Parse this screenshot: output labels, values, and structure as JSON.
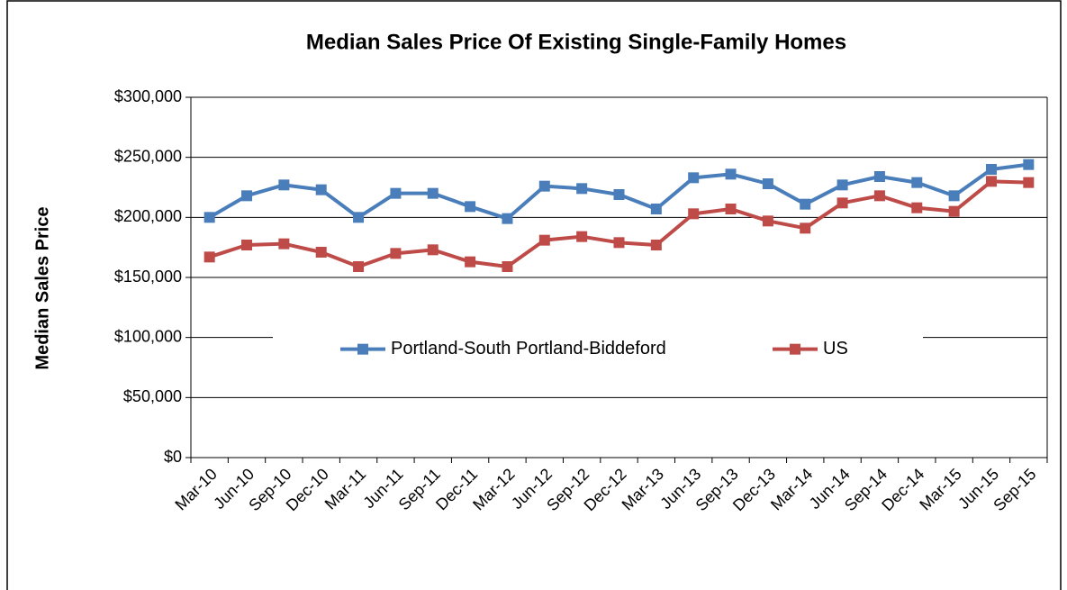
{
  "chart_data": {
    "type": "line",
    "title": "Median Sales Price Of Existing Single-Family Homes",
    "y_label": "Median Sales Price",
    "categories": [
      "Mar-10",
      "Jun-10",
      "Sep-10",
      "Dec-10",
      "Mar-11",
      "Jun-11",
      "Sep-11",
      "Dec-11",
      "Mar-12",
      "Jun-12",
      "Sep-12",
      "Dec-12",
      "Mar-13",
      "Jun-13",
      "Sep-13",
      "Dec-13",
      "Mar-14",
      "Jun-14",
      "Sep-14",
      "Dec-14",
      "Mar-15",
      "Jun-15",
      "Sep-15"
    ],
    "series": [
      {
        "name": "Portland-South Portland-Biddeford",
        "color": "#4a7ebb",
        "values": [
          200000,
          218000,
          227000,
          223000,
          200000,
          220000,
          220000,
          209000,
          199000,
          226000,
          224000,
          219000,
          207000,
          233000,
          236000,
          228000,
          211000,
          227000,
          234000,
          229000,
          218000,
          240000,
          244000
        ]
      },
      {
        "name": "US",
        "color": "#be4b48",
        "values": [
          167000,
          177000,
          178000,
          171000,
          159000,
          170000,
          173000,
          163000,
          159000,
          181000,
          184000,
          179000,
          177000,
          203000,
          207000,
          197000,
          191000,
          212000,
          218000,
          208000,
          205000,
          230000,
          229000
        ]
      }
    ],
    "ylim": [
      0,
      300000
    ],
    "yticks": [
      {
        "value": 0,
        "label": "$0"
      },
      {
        "value": 50000,
        "label": "$50,000"
      },
      {
        "value": 100000,
        "label": "$100,000"
      },
      {
        "value": 150000,
        "label": "$150,000"
      },
      {
        "value": 200000,
        "label": "$200,000"
      },
      {
        "value": 250000,
        "label": "$250,000"
      },
      {
        "value": 300000,
        "label": "$300,000"
      }
    ],
    "grid": true,
    "legend": "center"
  }
}
